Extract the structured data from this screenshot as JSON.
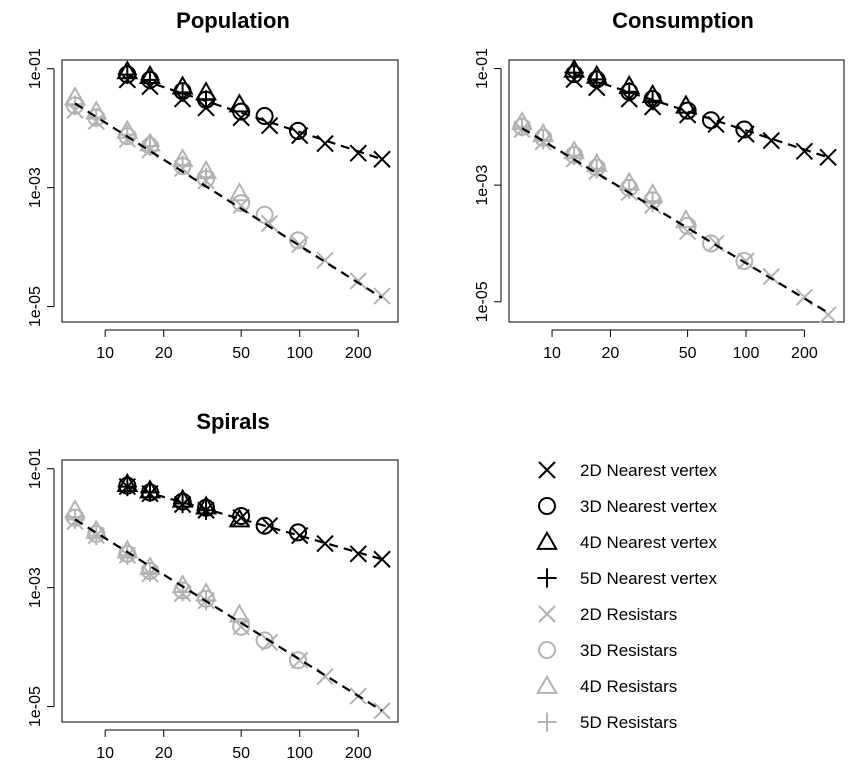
{
  "chart_data": [
    {
      "type": "scatter",
      "title": "Population",
      "xlabel": "",
      "ylabel": "",
      "x_scale": "log",
      "y_scale": "log",
      "xlim": [
        6,
        320
      ],
      "ylim": [
        5.5e-06,
        0.14
      ],
      "x_ticks": [
        10,
        20,
        50,
        100,
        200
      ],
      "x_tick_labels": [
        "10",
        "20",
        "50",
        "100",
        "200"
      ],
      "y_ticks": [
        0.1,
        0.001,
        1e-05
      ],
      "y_tick_labels": [
        "1e-01",
        "1e-03",
        "1e-05"
      ],
      "series": [
        {
          "name": "2D Nearest vertex",
          "marker": "x",
          "color": "#000000",
          "x": [
            13,
            17,
            25,
            33,
            50,
            70,
            100,
            135,
            200,
            265
          ],
          "y": [
            0.065,
            0.05,
            0.031,
            0.022,
            0.015,
            0.011,
            0.0075,
            0.0055,
            0.0038,
            0.003
          ]
        },
        {
          "name": "3D Nearest vertex",
          "marker": "circle",
          "color": "#000000",
          "x": [
            13,
            17,
            25,
            33,
            50,
            66,
            98
          ],
          "y": [
            0.08,
            0.065,
            0.042,
            0.03,
            0.019,
            0.016,
            0.009
          ]
        },
        {
          "name": "4D Nearest vertex",
          "marker": "triangle",
          "color": "#000000",
          "x": [
            13,
            17,
            25,
            33,
            49
          ],
          "y": [
            0.09,
            0.075,
            0.05,
            0.04,
            0.025
          ]
        },
        {
          "name": "5D Nearest vertex",
          "marker": "plus",
          "color": "#000000",
          "x": [
            13,
            17,
            25,
            33
          ],
          "y": [
            0.08,
            0.065,
            0.04,
            0.03
          ]
        },
        {
          "name": "2D Resistars",
          "marker": "x",
          "color": "#b3b3b3",
          "x": [
            7,
            9,
            13,
            17,
            25,
            33,
            50,
            70,
            100,
            135,
            200,
            265
          ],
          "y": [
            0.02,
            0.013,
            0.0065,
            0.0043,
            0.0021,
            0.0013,
            0.0005,
            0.00025,
            0.00011,
            6e-05,
            2.7e-05,
            1.5e-05
          ]
        },
        {
          "name": "3D Resistars",
          "marker": "circle",
          "color": "#b3b3b3",
          "x": [
            7,
            9,
            13,
            17,
            25,
            33,
            50,
            66,
            98
          ],
          "y": [
            0.024,
            0.015,
            0.0073,
            0.005,
            0.0023,
            0.0014,
            0.00055,
            0.00035,
            0.00013
          ]
        },
        {
          "name": "4D Resistars",
          "marker": "triangle",
          "color": "#b3b3b3",
          "x": [
            7,
            9,
            13,
            17,
            25,
            33,
            49
          ],
          "y": [
            0.033,
            0.019,
            0.009,
            0.0055,
            0.003,
            0.0019,
            0.0008
          ]
        },
        {
          "name": "5D Resistars",
          "marker": "plus",
          "color": "#b3b3b3",
          "x": [
            7,
            9,
            13,
            17,
            25,
            33
          ],
          "y": [
            0.024,
            0.015,
            0.0078,
            0.005,
            0.0024,
            0.0015
          ]
        }
      ],
      "fit_lines": [
        {
          "x": [
            13,
            265
          ],
          "y": [
            0.078,
            0.003
          ]
        },
        {
          "x": [
            7,
            265
          ],
          "y": [
            0.026,
            1.4e-05
          ]
        }
      ]
    },
    {
      "type": "scatter",
      "title": "Consumption",
      "xlabel": "",
      "ylabel": "",
      "x_scale": "log",
      "y_scale": "log",
      "xlim": [
        6,
        320
      ],
      "ylim": [
        4.5e-06,
        0.14
      ],
      "x_ticks": [
        10,
        20,
        50,
        100,
        200
      ],
      "x_tick_labels": [
        "10",
        "20",
        "50",
        "100",
        "200"
      ],
      "y_ticks": [
        0.1,
        0.001,
        1e-05
      ],
      "y_tick_labels": [
        "1e-01",
        "1e-03",
        "1e-05"
      ],
      "series": [
        {
          "name": "2D Nearest vertex",
          "marker": "x",
          "color": "#000000",
          "x": [
            13,
            17,
            25,
            33,
            50,
            70,
            100,
            135,
            200,
            265
          ],
          "y": [
            0.065,
            0.047,
            0.03,
            0.022,
            0.016,
            0.011,
            0.0075,
            0.0058,
            0.0038,
            0.003
          ]
        },
        {
          "name": "3D Nearest vertex",
          "marker": "circle",
          "color": "#000000",
          "x": [
            13,
            17,
            25,
            33,
            50,
            66,
            98
          ],
          "y": [
            0.08,
            0.065,
            0.04,
            0.03,
            0.019,
            0.013,
            0.009
          ]
        },
        {
          "name": "4D Nearest vertex",
          "marker": "triangle",
          "color": "#000000",
          "x": [
            13,
            17,
            25,
            33,
            49
          ],
          "y": [
            0.095,
            0.075,
            0.05,
            0.035,
            0.023
          ]
        },
        {
          "name": "5D Nearest vertex",
          "marker": "plus",
          "color": "#000000",
          "x": [
            13,
            17,
            25,
            33
          ],
          "y": [
            0.085,
            0.065,
            0.04,
            0.028
          ]
        },
        {
          "name": "2D Resistars",
          "marker": "x",
          "color": "#b3b3b3",
          "x": [
            7,
            9,
            13,
            17,
            25,
            33,
            50,
            70,
            100,
            135,
            200,
            265
          ],
          "y": [
            0.009,
            0.0055,
            0.0028,
            0.0017,
            0.00075,
            0.00045,
            0.00016,
            0.0001,
            5e-05,
            2.7e-05,
            1.2e-05,
            6e-06
          ]
        },
        {
          "name": "3D Resistars",
          "marker": "circle",
          "color": "#b3b3b3",
          "x": [
            7,
            9,
            13,
            17,
            25,
            33,
            50,
            66,
            98
          ],
          "y": [
            0.01,
            0.0065,
            0.0033,
            0.002,
            0.0009,
            0.00055,
            0.0002,
            0.0001,
            5e-05
          ]
        },
        {
          "name": "4D Resistars",
          "marker": "triangle",
          "color": "#b3b3b3",
          "x": [
            7,
            9,
            13,
            17,
            25,
            33,
            49
          ],
          "y": [
            0.012,
            0.0075,
            0.0038,
            0.0023,
            0.0011,
            0.0007,
            0.00025
          ]
        },
        {
          "name": "5D Resistars",
          "marker": "plus",
          "color": "#b3b3b3",
          "x": [
            7,
            9,
            13,
            17,
            25,
            33
          ],
          "y": [
            0.01,
            0.006,
            0.0032,
            0.0019,
            0.00085,
            0.0005
          ]
        }
      ],
      "fit_lines": [
        {
          "x": [
            13,
            265
          ],
          "y": [
            0.08,
            0.003
          ]
        },
        {
          "x": [
            7,
            265
          ],
          "y": [
            0.0095,
            6.5e-06
          ]
        }
      ]
    },
    {
      "type": "scatter",
      "title": "Spirals",
      "xlabel": "",
      "ylabel": "",
      "x_scale": "log",
      "y_scale": "log",
      "xlim": [
        6,
        320
      ],
      "ylim": [
        5.5e-06,
        0.14
      ],
      "x_ticks": [
        10,
        20,
        50,
        100,
        200
      ],
      "x_tick_labels": [
        "10",
        "20",
        "50",
        "100",
        "200"
      ],
      "y_ticks": [
        0.1,
        0.001,
        1e-05
      ],
      "y_tick_labels": [
        "1e-01",
        "1e-03",
        "1e-05"
      ],
      "series": [
        {
          "name": "2D Nearest vertex",
          "marker": "x",
          "color": "#000000",
          "x": [
            13,
            17,
            25,
            33,
            50,
            70,
            100,
            135,
            200,
            265
          ],
          "y": [
            0.05,
            0.038,
            0.025,
            0.02,
            0.015,
            0.011,
            0.0075,
            0.0055,
            0.0037,
            0.003
          ]
        },
        {
          "name": "3D Nearest vertex",
          "marker": "circle",
          "color": "#000000",
          "x": [
            13,
            17,
            25,
            33,
            50,
            66,
            98
          ],
          "y": [
            0.052,
            0.04,
            0.028,
            0.022,
            0.016,
            0.011,
            0.0085
          ]
        },
        {
          "name": "4D Nearest vertex",
          "marker": "triangle",
          "color": "#000000",
          "x": [
            13,
            17,
            25,
            33,
            49
          ],
          "y": [
            0.055,
            0.043,
            0.03,
            0.023,
            0.014
          ]
        },
        {
          "name": "5D Nearest vertex",
          "marker": "plus",
          "color": "#000000",
          "x": [
            13,
            17,
            25,
            33
          ],
          "y": [
            0.05,
            0.04,
            0.026,
            0.02
          ]
        },
        {
          "name": "2D Resistars",
          "marker": "x",
          "color": "#b3b3b3",
          "x": [
            7,
            9,
            13,
            17,
            25,
            33,
            50,
            70,
            100,
            135,
            200,
            265
          ],
          "y": [
            0.013,
            0.0075,
            0.0035,
            0.0017,
            0.0008,
            0.0006,
            0.00022,
            0.00012,
            6e-05,
            3.2e-05,
            1.5e-05,
            8.5e-06
          ]
        },
        {
          "name": "3D Resistars",
          "marker": "circle",
          "color": "#b3b3b3",
          "x": [
            7,
            9,
            13,
            17,
            25,
            33,
            50,
            66,
            98
          ],
          "y": [
            0.015,
            0.008,
            0.0037,
            0.0019,
            0.0009,
            0.00065,
            0.00022,
            0.00013,
            6e-05
          ]
        },
        {
          "name": "4D Resistars",
          "marker": "triangle",
          "color": "#b3b3b3",
          "x": [
            7,
            9,
            13,
            17,
            25,
            33,
            49
          ],
          "y": [
            0.02,
            0.009,
            0.0042,
            0.0022,
            0.0011,
            0.0008,
            0.00035
          ]
        },
        {
          "name": "5D Resistars",
          "marker": "plus",
          "color": "#b3b3b3",
          "x": [
            7,
            9,
            13,
            17,
            25,
            33
          ],
          "y": [
            0.014,
            0.0075,
            0.0035,
            0.0018,
            0.00085,
            0.0006
          ]
        }
      ],
      "fit_lines": [
        {
          "x": [
            13,
            265
          ],
          "y": [
            0.05,
            0.003
          ]
        },
        {
          "x": [
            7,
            265
          ],
          "y": [
            0.014,
            8.5e-06
          ]
        }
      ]
    }
  ],
  "legend": {
    "placement": "bottom-right",
    "entries": [
      {
        "label": "2D Nearest vertex",
        "marker": "x",
        "color": "#000000"
      },
      {
        "label": "3D Nearest vertex",
        "marker": "circle",
        "color": "#000000"
      },
      {
        "label": "4D Nearest vertex",
        "marker": "triangle",
        "color": "#000000"
      },
      {
        "label": "5D Nearest vertex",
        "marker": "plus",
        "color": "#000000"
      },
      {
        "label": "2D Resistars",
        "marker": "x",
        "color": "#b3b3b3"
      },
      {
        "label": "3D Resistars",
        "marker": "circle",
        "color": "#b3b3b3"
      },
      {
        "label": "4D Resistars",
        "marker": "triangle",
        "color": "#b3b3b3"
      },
      {
        "label": "5D Resistars",
        "marker": "plus",
        "color": "#b3b3b3"
      }
    ]
  }
}
